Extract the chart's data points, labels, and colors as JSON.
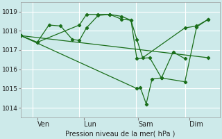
{
  "background_color": "#cdeaea",
  "grid_color": "#b0d8d8",
  "line_color": "#1a6e1a",
  "title": "Pression niveau de la mer( hPa )",
  "ylim": [
    1013.5,
    1019.5
  ],
  "yticks": [
    1014,
    1015,
    1016,
    1017,
    1018,
    1019
  ],
  "xlim": [
    0,
    8.5
  ],
  "xtick_labels": [
    "Ven",
    "Lun",
    "Sam",
    "Dim"
  ],
  "xtick_positions": [
    0.7,
    2.7,
    5.0,
    7.2
  ],
  "vline_positions": [
    0.5,
    2.5,
    4.9,
    7.0
  ],
  "series": [
    {
      "x": [
        0.0,
        0.7,
        1.2,
        1.7,
        2.2,
        2.5,
        2.8,
        3.3,
        3.8,
        4.3,
        4.7,
        4.95,
        5.2,
        7.0,
        7.5,
        8.0
      ],
      "y": [
        1017.75,
        1017.4,
        1018.3,
        1018.25,
        1017.55,
        1017.5,
        1018.15,
        1018.8,
        1018.85,
        1018.75,
        1018.55,
        1017.55,
        1016.6,
        1018.15,
        1018.25,
        1018.6
      ]
    },
    {
      "x": [
        0.0,
        0.7,
        2.5,
        2.8,
        3.3,
        3.8,
        4.3,
        4.7,
        4.95,
        5.5,
        6.0,
        7.0,
        7.5,
        8.0
      ],
      "y": [
        1017.75,
        1017.4,
        1018.3,
        1018.85,
        1018.85,
        1018.85,
        1018.6,
        1018.55,
        1016.55,
        1016.6,
        1015.55,
        1015.35,
        1018.2,
        1018.6
      ]
    },
    {
      "x": [
        0.0,
        4.95,
        5.1,
        5.35,
        5.6,
        6.0,
        6.5,
        7.0
      ],
      "y": [
        1017.75,
        1015.0,
        1015.05,
        1014.2,
        1015.5,
        1015.55,
        1016.9,
        1016.55
      ]
    },
    {
      "x": [
        0.0,
        8.0
      ],
      "y": [
        1017.75,
        1016.6
      ]
    }
  ]
}
